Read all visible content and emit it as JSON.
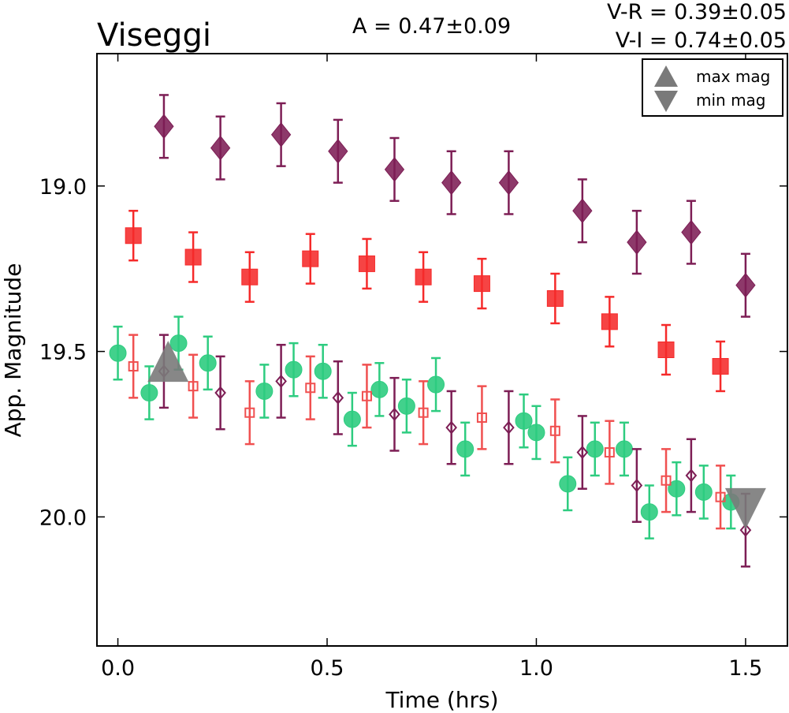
{
  "chart_data": {
    "type": "scatter",
    "title": "Viseggi",
    "annotations": {
      "amplitude": "A  = 0.47±0.09",
      "color_vr": "V-R = 0.39±0.05",
      "color_vi": "V-I  = 0.74±0.05"
    },
    "xlabel": "Time (hrs)",
    "ylabel": "App. Magnitude",
    "xlim": [
      -0.05,
      1.6
    ],
    "ylim": [
      20.39,
      18.6
    ],
    "y_inverted": true,
    "xticks": [
      0.0,
      0.5,
      1.0,
      1.5
    ],
    "xtick_labels": [
      "0.0",
      "0.5",
      "1.0",
      "1.5"
    ],
    "yticks": [
      19.0,
      19.5,
      20.0
    ],
    "ytick_labels": [
      "19.0",
      "19.5",
      "20.0"
    ],
    "grid": false,
    "legend": {
      "position": "top-right",
      "entries": [
        {
          "label": "max mag",
          "marker": "triangle-up",
          "color": "#7a7a7a"
        },
        {
          "label": "min mag",
          "marker": "triangle-down",
          "color": "#7a7a7a"
        }
      ]
    },
    "series": [
      {
        "marker": "diamond",
        "fill": "filled",
        "color": "#7d1e55",
        "x": [
          0.11,
          0.245,
          0.39,
          0.526,
          0.661,
          0.797,
          0.934,
          1.11,
          1.24,
          1.37,
          1.5
        ],
        "y": [
          18.82,
          18.885,
          18.845,
          18.895,
          18.95,
          18.99,
          18.99,
          19.075,
          19.17,
          19.14,
          19.3
        ],
        "err": [
          0.095,
          0.095,
          0.095,
          0.095,
          0.095,
          0.095,
          0.095,
          0.095,
          0.095,
          0.095,
          0.095
        ]
      },
      {
        "marker": "square",
        "fill": "filled",
        "color": "#f52a2a",
        "x": [
          0.037,
          0.18,
          0.315,
          0.46,
          0.595,
          0.73,
          0.87,
          1.045,
          1.175,
          1.31,
          1.44
        ],
        "y": [
          19.15,
          19.215,
          19.275,
          19.22,
          19.235,
          19.275,
          19.295,
          19.34,
          19.41,
          19.495,
          19.545
        ],
        "err": [
          0.075,
          0.075,
          0.075,
          0.075,
          0.075,
          0.075,
          0.075,
          0.075,
          0.075,
          0.075,
          0.075
        ]
      },
      {
        "marker": "circle",
        "fill": "filled",
        "color": "#2ecc80",
        "x": [
          0.0,
          0.075,
          0.145,
          0.215,
          0.35,
          0.42,
          0.49,
          0.56,
          0.625,
          0.69,
          0.76,
          0.83,
          0.97,
          1.0,
          1.075,
          1.14,
          1.21,
          1.27,
          1.335,
          1.4,
          1.465
        ],
        "y": [
          19.505,
          19.625,
          19.475,
          19.535,
          19.62,
          19.555,
          19.56,
          19.705,
          19.615,
          19.665,
          19.6,
          19.795,
          19.71,
          19.745,
          19.9,
          19.795,
          19.795,
          19.985,
          19.915,
          19.925,
          19.955
        ],
        "err": [
          0.08,
          0.08,
          0.08,
          0.08,
          0.08,
          0.08,
          0.08,
          0.08,
          0.08,
          0.08,
          0.08,
          0.08,
          0.08,
          0.08,
          0.08,
          0.08,
          0.08,
          0.08,
          0.08,
          0.08,
          0.08
        ]
      },
      {
        "marker": "square",
        "fill": "open",
        "color": "#f05050",
        "x": [
          0.037,
          0.18,
          0.315,
          0.46,
          0.595,
          0.73,
          0.87,
          1.045,
          1.175,
          1.31,
          1.44
        ],
        "y": [
          19.545,
          19.605,
          19.685,
          19.61,
          19.635,
          19.685,
          19.7,
          19.74,
          19.805,
          19.89,
          19.94
        ],
        "err": [
          0.095,
          0.095,
          0.095,
          0.095,
          0.095,
          0.095,
          0.095,
          0.095,
          0.095,
          0.095,
          0.095
        ]
      },
      {
        "marker": "diamond",
        "fill": "open",
        "color": "#7d1e55",
        "x": [
          0.11,
          0.245,
          0.39,
          0.526,
          0.661,
          0.797,
          0.934,
          1.11,
          1.24,
          1.37,
          1.5
        ],
        "y": [
          19.56,
          19.625,
          19.59,
          19.64,
          19.69,
          19.73,
          19.73,
          19.805,
          19.905,
          19.875,
          20.04
        ],
        "err": [
          0.11,
          0.11,
          0.11,
          0.11,
          0.11,
          0.11,
          0.11,
          0.11,
          0.11,
          0.11,
          0.11
        ]
      }
    ],
    "extrema_markers": [
      {
        "kind": "max",
        "shape": "triangle-up",
        "x": 0.12,
        "y": 19.53,
        "color": "#7a7a7a"
      },
      {
        "kind": "min",
        "shape": "triangle-down",
        "x": 1.5,
        "y": 19.975,
        "color": "#7a7a7a"
      }
    ]
  }
}
